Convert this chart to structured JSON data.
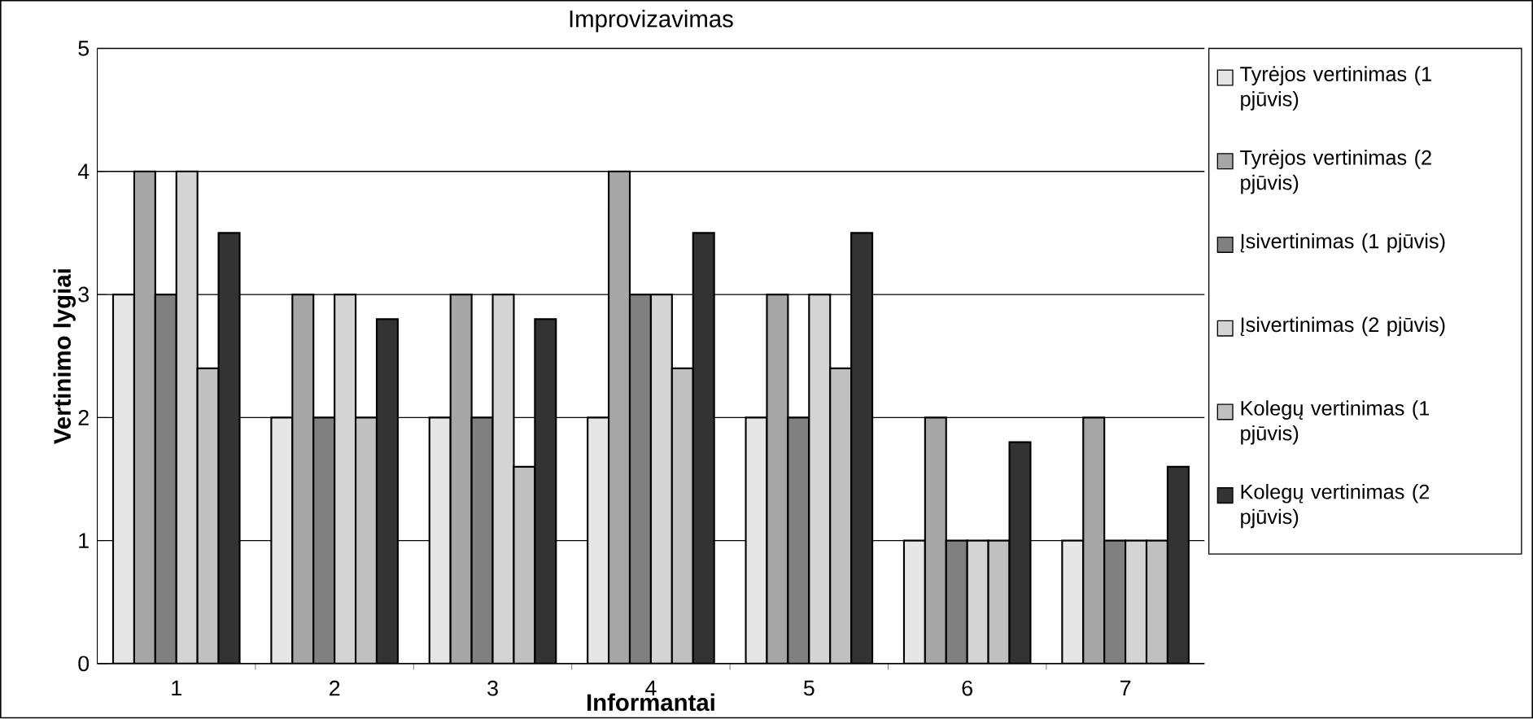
{
  "chart_data": {
    "type": "bar",
    "title": "Improvizavimas",
    "xlabel": "Informantai",
    "ylabel": "Vertinimo lygiai",
    "categories": [
      "1",
      "2",
      "3",
      "4",
      "5",
      "6",
      "7"
    ],
    "series": [
      {
        "name": "Tyrėjos vertinimas (1 pjūvis)",
        "color": "#e6e6e6",
        "values": [
          3,
          2,
          2,
          2,
          2,
          1,
          1
        ]
      },
      {
        "name": "Tyrėjos vertinimas (2 pjūvis)",
        "color": "#a6a6a6",
        "values": [
          4,
          3,
          3,
          4,
          3,
          2,
          2
        ]
      },
      {
        "name": "Įsivertinimas (1 pjūvis)",
        "color": "#808080",
        "values": [
          3,
          2,
          2,
          3,
          2,
          1,
          1
        ]
      },
      {
        "name": "Įsivertinimas (2 pjūvis)",
        "color": "#d4d4d4",
        "values": [
          4,
          3,
          3,
          3,
          3,
          1,
          1
        ]
      },
      {
        "name": "Kolegų vertinimas (1 pjūvis)",
        "color": "#c0c0c0",
        "values": [
          2.4,
          2,
          1.6,
          2.4,
          2.4,
          1,
          1
        ]
      },
      {
        "name": "Kolegų vertinimas (2 pjūvis)",
        "color": "#333333",
        "values": [
          3.5,
          2.8,
          2.8,
          3.5,
          3.5,
          1.8,
          1.6
        ]
      }
    ],
    "ylim": [
      0,
      5
    ],
    "yticks": [
      0,
      1,
      2,
      3,
      4,
      5
    ],
    "grid": "y",
    "legend": "right"
  }
}
